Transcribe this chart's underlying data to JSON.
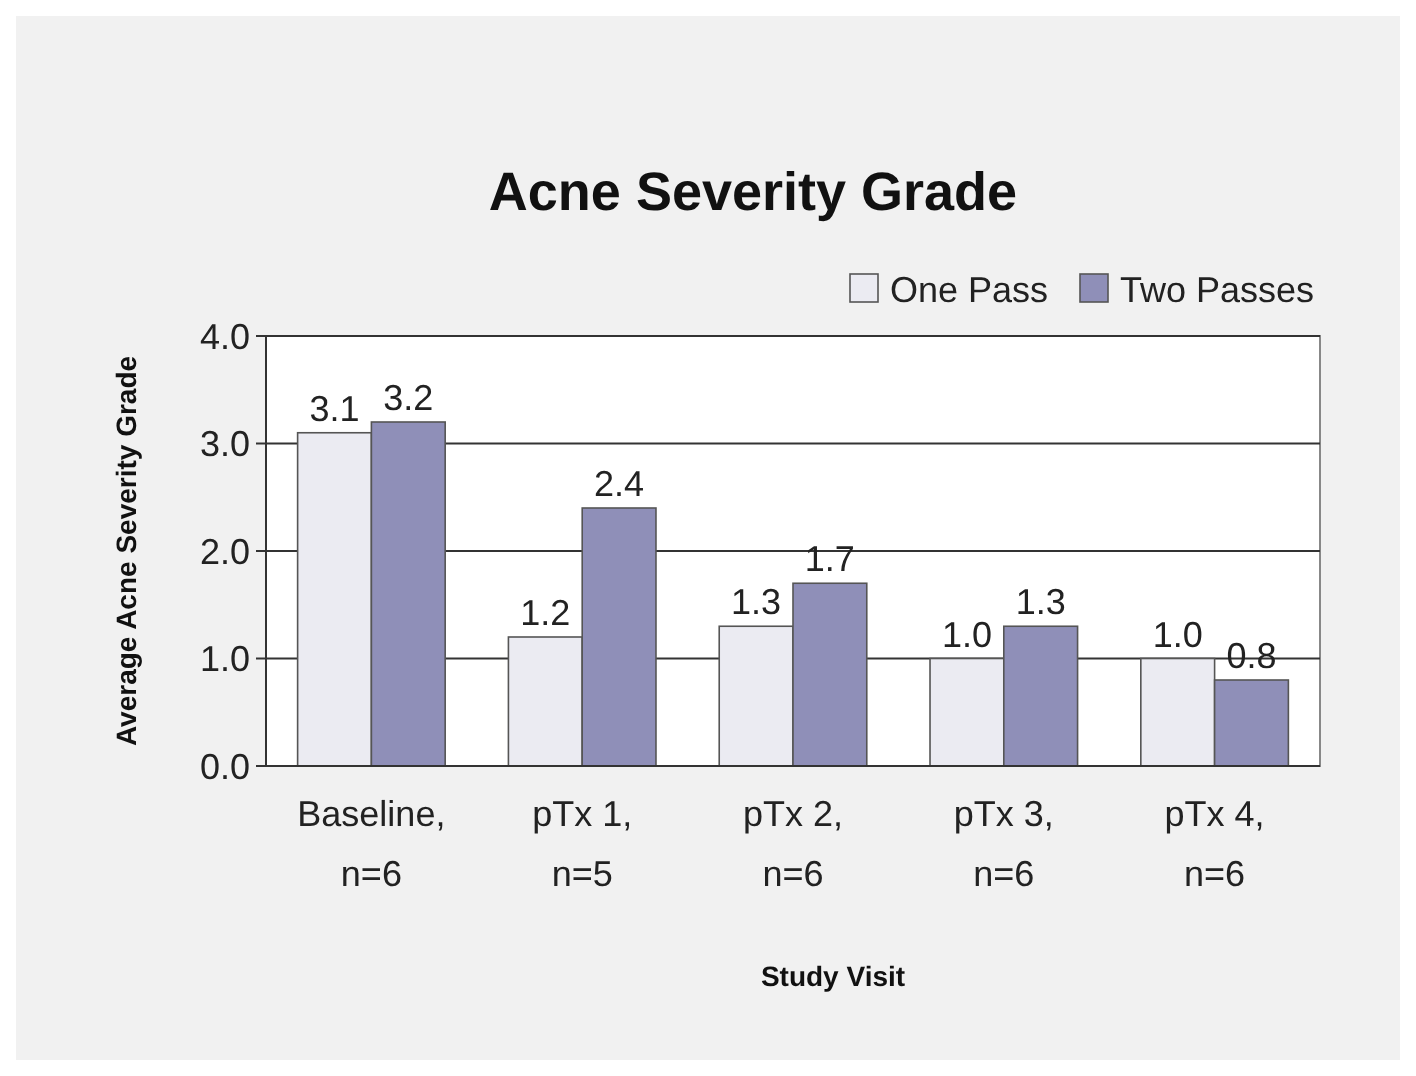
{
  "chart_data": {
    "type": "bar",
    "title": "Acne Severity Grade",
    "xlabel": "Study Visit",
    "ylabel": "Average Acne Severity Grade",
    "categories": [
      "Baseline, n=6",
      "pTx 1, n=5",
      "pTx 2, n=6",
      "pTx 3, n=6",
      "pTx 4, n=6"
    ],
    "series": [
      {
        "name": "One Pass",
        "color": "#ebebf2",
        "values": [
          3.1,
          1.2,
          1.3,
          1.0,
          1.0
        ],
        "value_labels": [
          "3.1",
          "1.2",
          "1.3",
          "1.0",
          "1.0"
        ]
      },
      {
        "name": "Two Passes",
        "color": "#8f8fb8",
        "values": [
          3.2,
          2.4,
          1.7,
          1.3,
          0.8
        ],
        "value_labels": [
          "3.2",
          "2.4",
          "1.7",
          "1.3",
          "0.8"
        ]
      }
    ],
    "ylim": [
      0,
      4
    ],
    "yticks": [
      {
        "value": 0,
        "label": "0.0"
      },
      {
        "value": 1,
        "label": "1.0"
      },
      {
        "value": 2,
        "label": "2.0"
      },
      {
        "value": 3,
        "label": "3.0"
      },
      {
        "value": 4,
        "label": "4.0"
      }
    ],
    "grid": "y",
    "legend": "top right"
  }
}
